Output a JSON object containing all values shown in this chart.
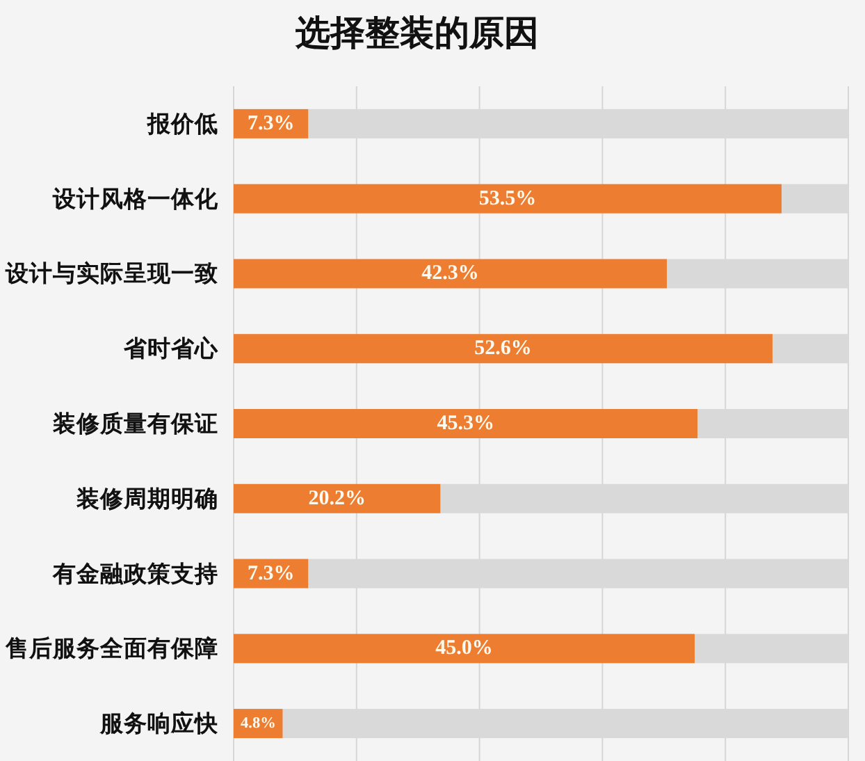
{
  "chart_data": {
    "type": "bar",
    "title": "选择整装的原因",
    "orientation": "horizontal",
    "stacked": true,
    "categories": [
      "报价低",
      "设计风格一体化",
      "设计与实际呈现一致",
      "省时省心",
      "装修质量有保证",
      "装修周期明确",
      "有金融政策支持",
      "售后服务全面有保障",
      "服务响应快"
    ],
    "series": [
      {
        "color": "#ed7d31",
        "values": [
          7.3,
          53.5,
          42.3,
          52.6,
          45.3,
          20.2,
          7.3,
          45.0,
          4.8
        ],
        "value_labels": [
          "7.3%",
          "53.5%",
          "42.3%",
          "52.6%",
          "45.3%",
          "20.2%",
          "7.3%",
          "45.0%",
          "4.8%"
        ]
      },
      {
        "color": "#d9d9d9",
        "values": [
          52.7,
          6.5,
          17.7,
          7.4,
          14.7,
          39.8,
          52.7,
          15.0,
          55.2
        ]
      }
    ],
    "xlim": [
      0,
      60
    ],
    "xticks": [
      0,
      12,
      24,
      36,
      48,
      60
    ],
    "tick_labels": "y",
    "grid": "x"
  }
}
